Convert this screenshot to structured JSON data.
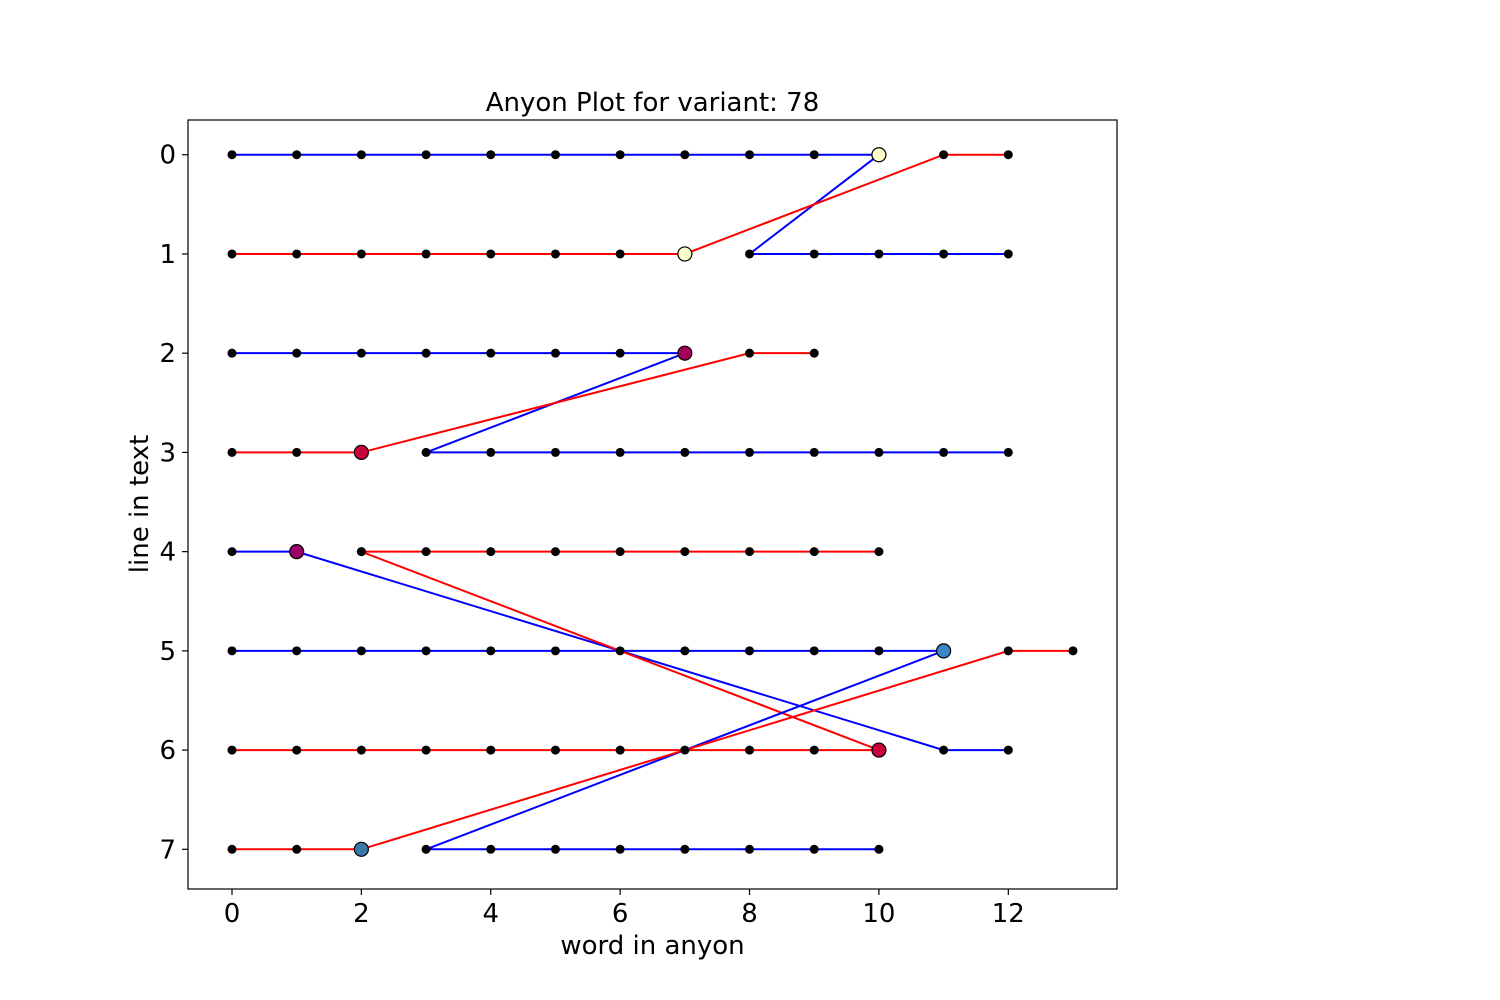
{
  "chart_data": {
    "type": "line",
    "title": "Anyon Plot for variant: 78",
    "xlabel": "word in anyon",
    "ylabel": "line in text",
    "xlim": [
      -0.68,
      13.68
    ],
    "ylim": [
      7.4,
      -0.35
    ],
    "y_inverted": true,
    "xticks": [
      0,
      2,
      4,
      6,
      8,
      10,
      12
    ],
    "yticks": [
      0,
      1,
      2,
      3,
      4,
      5,
      6,
      7
    ],
    "grid": false,
    "legend": "none",
    "colors": {
      "red": "#ff0000",
      "blue": "#0000ff",
      "point": "#000000"
    },
    "lines": [
      {
        "color": "blue",
        "points": [
          [
            0,
            0
          ],
          [
            1,
            0
          ],
          [
            2,
            0
          ],
          [
            3,
            0
          ],
          [
            4,
            0
          ],
          [
            5,
            0
          ],
          [
            6,
            0
          ],
          [
            7,
            0
          ],
          [
            8,
            0
          ],
          [
            9,
            0
          ],
          [
            10,
            0
          ],
          [
            8,
            1
          ],
          [
            9,
            1
          ],
          [
            10,
            1
          ],
          [
            11,
            1
          ],
          [
            12,
            1
          ]
        ]
      },
      {
        "color": "red",
        "points": [
          [
            0,
            1
          ],
          [
            1,
            1
          ],
          [
            2,
            1
          ],
          [
            3,
            1
          ],
          [
            4,
            1
          ],
          [
            5,
            1
          ],
          [
            6,
            1
          ],
          [
            7,
            1
          ],
          [
            11,
            0
          ],
          [
            12,
            0
          ]
        ]
      },
      {
        "color": "blue",
        "points": [
          [
            0,
            2
          ],
          [
            1,
            2
          ],
          [
            2,
            2
          ],
          [
            3,
            2
          ],
          [
            4,
            2
          ],
          [
            5,
            2
          ],
          [
            6,
            2
          ],
          [
            7,
            2
          ],
          [
            3,
            3
          ],
          [
            4,
            3
          ],
          [
            5,
            3
          ],
          [
            6,
            3
          ],
          [
            7,
            3
          ],
          [
            8,
            3
          ],
          [
            9,
            3
          ],
          [
            10,
            3
          ],
          [
            11,
            3
          ],
          [
            12,
            3
          ]
        ]
      },
      {
        "color": "red",
        "points": [
          [
            0,
            3
          ],
          [
            1,
            3
          ],
          [
            2,
            3
          ],
          [
            8,
            2
          ],
          [
            9,
            2
          ]
        ]
      },
      {
        "color": "blue",
        "points": [
          [
            0,
            4
          ],
          [
            1,
            4
          ],
          [
            11,
            6
          ],
          [
            12,
            6
          ]
        ]
      },
      {
        "color": "red",
        "points": [
          [
            2,
            4
          ],
          [
            3,
            4
          ],
          [
            4,
            4
          ],
          [
            5,
            4
          ],
          [
            6,
            4
          ],
          [
            7,
            4
          ],
          [
            8,
            4
          ],
          [
            9,
            4
          ],
          [
            10,
            4
          ]
        ]
      },
      {
        "color": "red",
        "points": [
          [
            2,
            4
          ],
          [
            10,
            6
          ]
        ]
      },
      {
        "color": "blue",
        "points": [
          [
            0,
            5
          ],
          [
            1,
            5
          ],
          [
            2,
            5
          ],
          [
            3,
            5
          ],
          [
            4,
            5
          ],
          [
            5,
            5
          ],
          [
            6,
            5
          ],
          [
            7,
            5
          ],
          [
            8,
            5
          ],
          [
            9,
            5
          ],
          [
            10,
            5
          ],
          [
            11,
            5
          ],
          [
            3,
            7
          ],
          [
            4,
            7
          ],
          [
            5,
            7
          ],
          [
            6,
            7
          ],
          [
            7,
            7
          ],
          [
            8,
            7
          ],
          [
            9,
            7
          ],
          [
            10,
            7
          ]
        ]
      },
      {
        "color": "red",
        "points": [
          [
            0,
            6
          ],
          [
            1,
            6
          ],
          [
            2,
            6
          ],
          [
            3,
            6
          ],
          [
            4,
            6
          ],
          [
            5,
            6
          ],
          [
            6,
            6
          ],
          [
            7,
            6
          ],
          [
            8,
            6
          ],
          [
            9,
            6
          ],
          [
            10,
            6
          ]
        ]
      },
      {
        "color": "red",
        "points": [
          [
            0,
            7
          ],
          [
            1,
            7
          ],
          [
            2,
            7
          ],
          [
            12,
            5
          ],
          [
            13,
            5
          ]
        ]
      }
    ],
    "highlight_points": [
      {
        "x": 10,
        "y": 0,
        "color": "#ffffcc"
      },
      {
        "x": 7,
        "y": 1,
        "color": "#ffffcc"
      },
      {
        "x": 7,
        "y": 2,
        "color": "#a0005a"
      },
      {
        "x": 2,
        "y": 3,
        "color": "#c8003c"
      },
      {
        "x": 1,
        "y": 4,
        "color": "#9a0068"
      },
      {
        "x": 11,
        "y": 5,
        "color": "#3a86c8"
      },
      {
        "x": 10,
        "y": 6,
        "color": "#c8003c"
      },
      {
        "x": 2,
        "y": 7,
        "color": "#3a78a8"
      }
    ]
  }
}
